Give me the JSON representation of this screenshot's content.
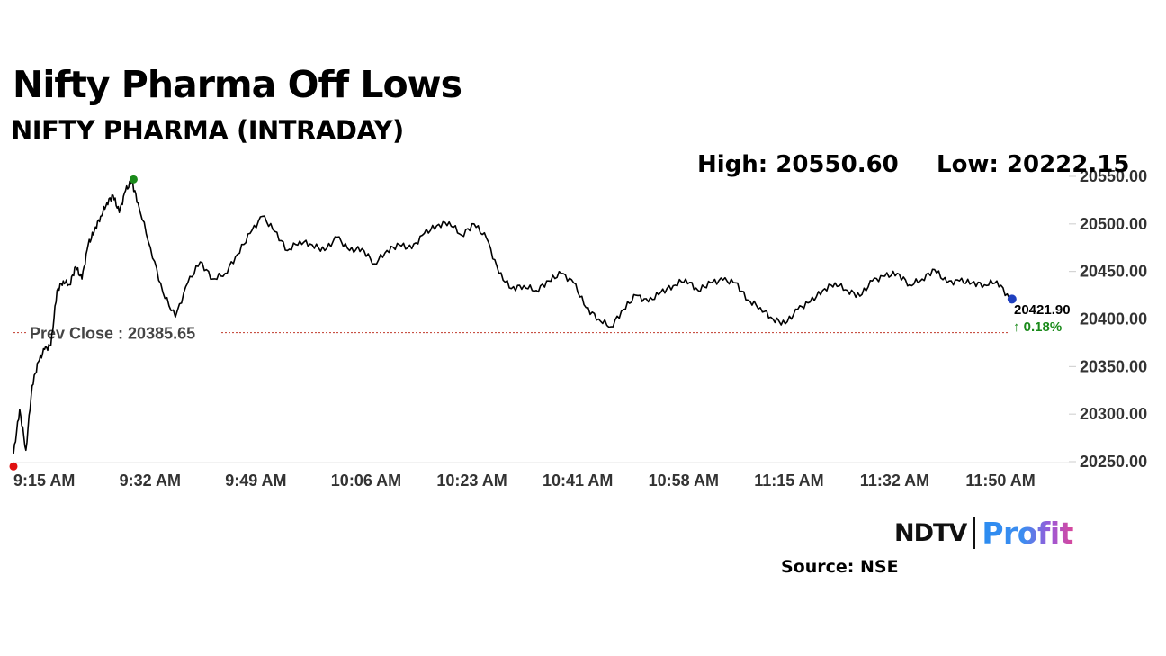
{
  "header": {
    "title": "Nifty Pharma Off Lows",
    "subtitle": "NIFTY PHARMA (INTRADAY)",
    "high_label": "High: 20550.60",
    "low_label": "Low: 20222.15"
  },
  "footer": {
    "logo_ndtv": "NDTV",
    "logo_profit": "Profit",
    "source": "Source: NSE"
  },
  "colors": {
    "line": "#000000",
    "prev_close_line": "#c0392b",
    "low_marker": "#e01010",
    "high_marker": "#1a8a1a",
    "last_marker": "#1f3fbf",
    "change_text": "#1a8a1a"
  },
  "chart_data": {
    "type": "line",
    "title": "NIFTY PHARMA (INTRADAY)",
    "x_tick_labels": [
      "9:15 AM",
      "9:32 AM",
      "9:49 AM",
      "10:06 AM",
      "10:23 AM",
      "10:41 AM",
      "10:58 AM",
      "11:15 AM",
      "11:32 AM",
      "11:50 AM"
    ],
    "y_tick_labels": [
      "20550.00",
      "20500.00",
      "20450.00",
      "20400.00",
      "20350.00",
      "20300.00",
      "20250.00"
    ],
    "ylim": [
      20250,
      20550
    ],
    "y_axis_position": "right",
    "grid": false,
    "prev_close": {
      "label": "Prev Close : 20385.65",
      "value": 20385.65
    },
    "last_value_label": "20421.90",
    "change_label": "↑ 0.18%",
    "series": [
      {
        "x_minutes": [
          0,
          1,
          2,
          3,
          4,
          5,
          6,
          7,
          8,
          9,
          10,
          11,
          12,
          13,
          14,
          15,
          16,
          17,
          18,
          19,
          20,
          22,
          24,
          26,
          28,
          30,
          32,
          34,
          36,
          38,
          40,
          42,
          44,
          46,
          48,
          50,
          52,
          54,
          56,
          58,
          60,
          62,
          64,
          66,
          68,
          70,
          72,
          74,
          76,
          78,
          80,
          82,
          84,
          86,
          88,
          90,
          92,
          94,
          96,
          98,
          100,
          102,
          104,
          106,
          108,
          110,
          112,
          114,
          116,
          118,
          120,
          122,
          124,
          126,
          128,
          130,
          132,
          134,
          136,
          138,
          140,
          142,
          144,
          146,
          148,
          150,
          152,
          154,
          156,
          158,
          160
        ],
        "values": [
          20258,
          20305,
          20262,
          20330,
          20355,
          20368,
          20372,
          20430,
          20440,
          20436,
          20455,
          20442,
          20478,
          20493,
          20508,
          20522,
          20530,
          20512,
          20535,
          20545,
          20522,
          20475,
          20428,
          20402,
          20438,
          20460,
          20442,
          20448,
          20468,
          20490,
          20508,
          20492,
          20472,
          20482,
          20478,
          20472,
          20486,
          20472,
          20474,
          20458,
          20472,
          20478,
          20474,
          20490,
          20498,
          20502,
          20488,
          20500,
          20485,
          20448,
          20432,
          20435,
          20430,
          20440,
          20448,
          20438,
          20412,
          20400,
          20392,
          20410,
          20425,
          20418,
          20428,
          20435,
          20442,
          20430,
          20438,
          20441,
          20438,
          20420,
          20412,
          20400,
          20395,
          20410,
          20418,
          20430,
          20438,
          20430,
          20424,
          20440,
          20445,
          20448,
          20436,
          20442,
          20452,
          20438,
          20440,
          20438,
          20436,
          20440,
          20421.9
        ]
      }
    ],
    "markers": {
      "low": {
        "x_minutes": 0,
        "value": 20222.15
      },
      "high": {
        "x_minutes": 19,
        "value": 20550.6
      },
      "last": {
        "x_minutes": 160,
        "value": 20421.9
      }
    }
  }
}
